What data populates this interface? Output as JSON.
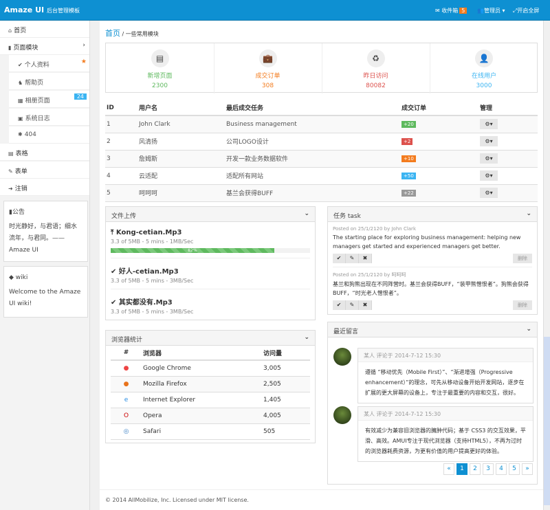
{
  "header": {
    "brand": "Amaze UI",
    "brand_sub": "后台管理模板",
    "inbox": "收件箱",
    "inbox_count": "5",
    "admin": "管理员",
    "fullscreen": "开启全屏"
  },
  "sidebar": {
    "items": [
      {
        "label": "首页",
        "icon": "home-icon"
      },
      {
        "label": "页面模块",
        "icon": "file-icon"
      },
      {
        "label": "个人资料",
        "icon": "check-icon"
      },
      {
        "label": "帮助页",
        "icon": "puzzle-icon"
      },
      {
        "label": "相册页面",
        "icon": "grid-icon",
        "badge": "24"
      },
      {
        "label": "系统日志",
        "icon": "calendar-icon"
      },
      {
        "label": "404",
        "icon": "bug-icon"
      },
      {
        "label": "表格",
        "icon": "table-icon"
      },
      {
        "label": "表单",
        "icon": "edit-icon"
      },
      {
        "label": "注销",
        "icon": "sign-out-icon"
      }
    ],
    "notice": {
      "title": "公告",
      "text": "时光静好，与君语；细水流年，与君同。—— Amaze UI"
    },
    "wiki": {
      "title": "wiki",
      "text": "Welcome to the Amaze UI wiki!"
    }
  },
  "breadcrumb": {
    "home": "首页",
    "sep": "/",
    "current": "一些常用模块"
  },
  "stats": [
    {
      "label": "新增页面",
      "value": "2300",
      "color": "#5eb95e",
      "icon": "file-text-icon"
    },
    {
      "label": "成交订单",
      "value": "308",
      "color": "#f37b1d",
      "icon": "briefcase-icon"
    },
    {
      "label": "昨日访问",
      "value": "80082",
      "color": "#dd514c",
      "icon": "recycle-icon"
    },
    {
      "label": "在线用户",
      "value": "3000",
      "color": "#3bb4f2",
      "icon": "user-md-icon"
    }
  ],
  "orders": {
    "headers": [
      "ID",
      "用户名",
      "最后成交任务",
      "成交订单",
      "管理"
    ],
    "rows": [
      {
        "id": "1",
        "user": "John Clark",
        "task": "Business management",
        "badge": "+20",
        "color": "#5eb95e"
      },
      {
        "id": "2",
        "user": "风清扬",
        "task": "公司LOGO设计",
        "badge": "+2",
        "color": "#dd514c"
      },
      {
        "id": "3",
        "user": "詹姆斯",
        "task": "开发一款业务数据软件",
        "badge": "+10",
        "color": "#f37b1d"
      },
      {
        "id": "4",
        "user": "云适配",
        "task": "适配所有网站",
        "badge": "+50",
        "color": "#3bb4f2"
      },
      {
        "id": "5",
        "user": "呵呵呵",
        "task": "基兰会获得BUFF",
        "badge": "+22",
        "color": "#999999"
      }
    ]
  },
  "upload": {
    "title": "文件上传",
    "files": [
      {
        "name": "Kong-cetian.Mp3",
        "meta": "3.3 of 5MB - 5 mins - 1MB/Sec",
        "progress": 82,
        "progress_label": "82%"
      },
      {
        "name": "好人-cetian.Mp3",
        "meta": "3.3 of 5MB - 5 mins - 3MB/Sec"
      },
      {
        "name": "其实都没有.Mp3",
        "meta": "3.3 of 5MB - 5 mins - 3MB/Sec"
      }
    ]
  },
  "browsers": {
    "title": "浏览器统计",
    "headers": [
      "#",
      "浏览器",
      "访问量"
    ],
    "rows": [
      {
        "name": "Google Chrome",
        "visits": "3,005",
        "icon": "chrome-icon"
      },
      {
        "name": "Mozilla Firefox",
        "visits": "2,505",
        "icon": "firefox-icon"
      },
      {
        "name": "Internet Explorer",
        "visits": "1,405",
        "icon": "ie-icon"
      },
      {
        "name": "Opera",
        "visits": "4,005",
        "icon": "opera-icon"
      },
      {
        "name": "Safari",
        "visits": "505",
        "icon": "safari-icon"
      }
    ]
  },
  "tasks": {
    "title": "任务 task",
    "delete_label": "删除",
    "items": [
      {
        "meta": "Posted on 25/1/2120 by John Clark",
        "text": "The starting place for exploring business management: helping new managers get started and experienced managers get better."
      },
      {
        "meta": "Posted on 25/1/2120 by 呵呵呵",
        "text": "基兰和狗熊出现在不同阵营时。基兰会获得BUFF，“装甲熊憎恨者”。狗熊会获得BUFF，“时光老人憎恨者”。"
      }
    ]
  },
  "comments": {
    "title": "最近留言",
    "items": [
      {
        "author": "某人",
        "action": "评论于",
        "time": "2014-7-12 15:30",
        "text": "遵循 “移动优先（Mobile First）”、“渐进增强（Progressive enhancement）”的理念，可先从移动设备开始开发网站，逐步在扩展的更大屏幕的设备上，专注于最重要的内容和交互，很好。"
      },
      {
        "author": "某人",
        "action": "评论于",
        "time": "2014-7-12 15:30",
        "text": "有效减少为兼容旧浏览器的臃肿代码；基于 CSS3 的交互效果，平滑、高效。AMUI专注于现代浏览器（支持HTML5），不再为过时的浏览器耗费资源，为更有价值的用户提高更好的体验。"
      }
    ],
    "pagination": [
      "«",
      "1",
      "2",
      "3",
      "4",
      "5",
      "»"
    ],
    "active_page": "1"
  },
  "footer": "© 2014 AllMobilize, Inc. Licensed under MIT license."
}
